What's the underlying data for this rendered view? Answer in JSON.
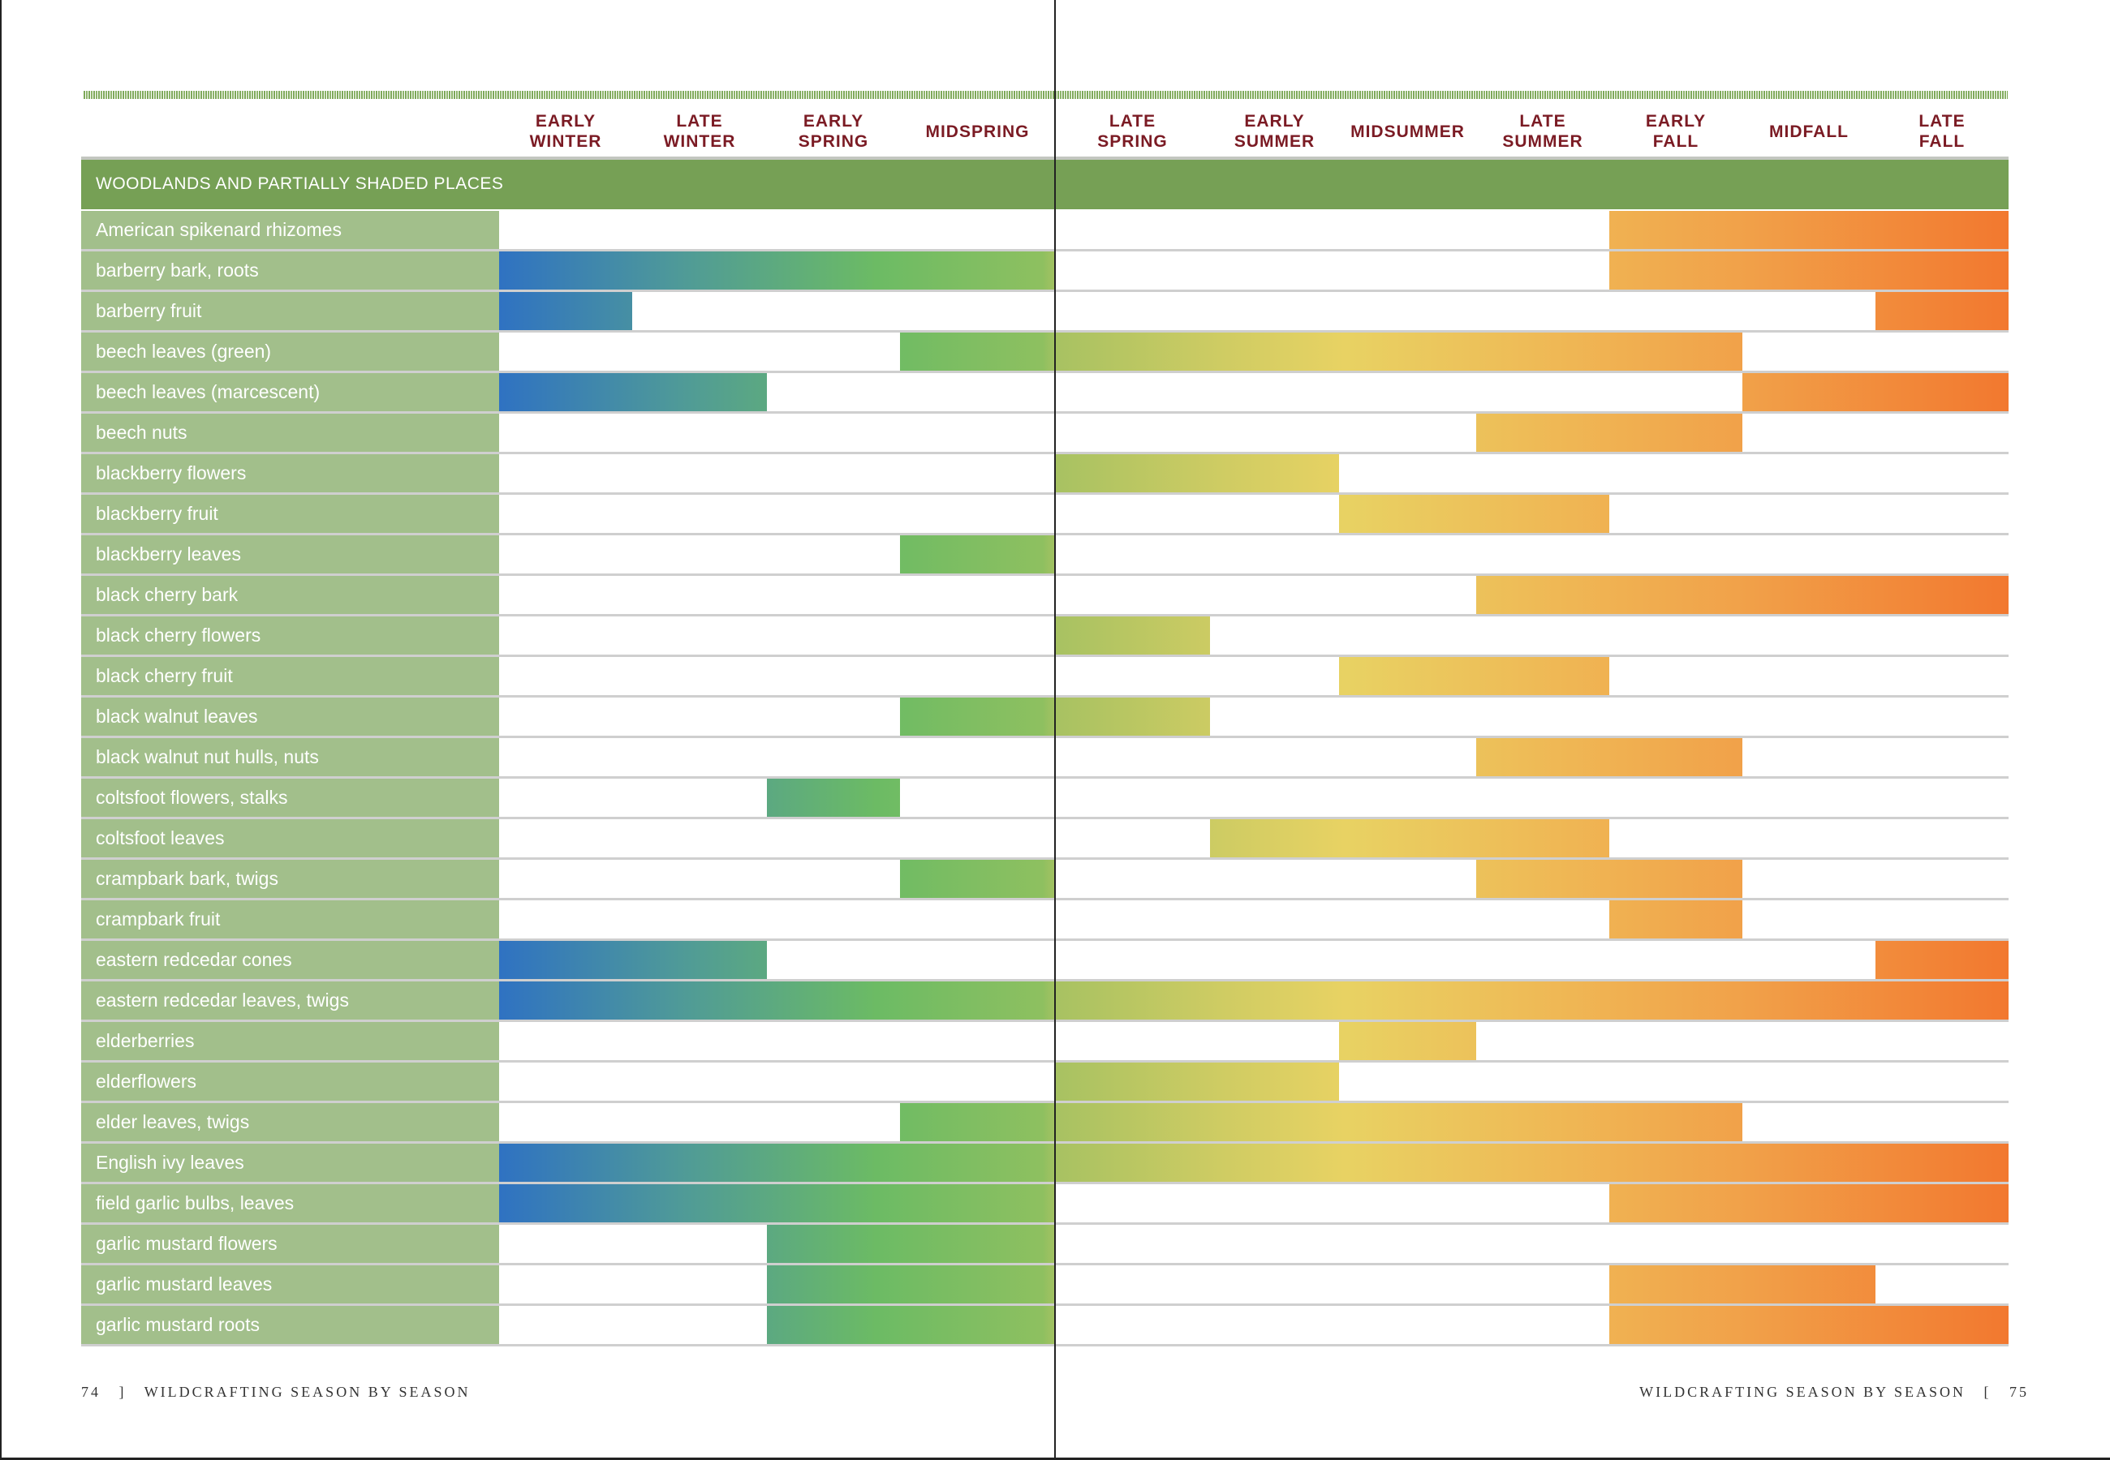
{
  "header": {
    "seasons": [
      "EARLY WINTER",
      "LATE WINTER",
      "EARLY SPRING",
      "MIDSPRING",
      "LATE SPRING",
      "EARLY SUMMER",
      "MIDSUMMER",
      "LATE SUMMER",
      "EARLY FALL",
      "MIDFALL",
      "LATE FALL"
    ]
  },
  "section": {
    "title": "WOODLANDS AND PARTIALLY SHADED PLACES"
  },
  "colors": {
    "section": "#76a055",
    "label_bg": "#a2bf8b",
    "header_text": "#7b1b24",
    "gradient_start": "#2f72c2",
    "gradient_mid_green": "#6cbb64",
    "gradient_yellow": "#e8d263",
    "gradient_end": "#f2782f"
  },
  "chart_data": {
    "type": "bar",
    "orientation": "horizontal-range",
    "categories": [
      "EARLY WINTER",
      "LATE WINTER",
      "EARLY SPRING",
      "MIDSPRING",
      "LATE SPRING",
      "EARLY SUMMER",
      "MIDSUMMER",
      "LATE SUMMER",
      "EARLY FALL",
      "MIDFALL",
      "LATE FALL"
    ],
    "rows": [
      {
        "label": "American spikenard rhizomes",
        "ranges": [
          [
            "EARLY FALL",
            "LATE FALL"
          ]
        ]
      },
      {
        "label": "barberry bark, roots",
        "ranges": [
          [
            "EARLY WINTER",
            "MIDSPRING"
          ],
          [
            "EARLY FALL",
            "LATE FALL"
          ]
        ]
      },
      {
        "label": "barberry fruit",
        "ranges": [
          [
            "EARLY WINTER",
            "EARLY WINTER"
          ],
          [
            "LATE FALL",
            "LATE FALL"
          ]
        ]
      },
      {
        "label": "beech leaves (green)",
        "ranges": [
          [
            "MIDSPRING",
            "EARLY FALL"
          ]
        ]
      },
      {
        "label": "beech leaves (marcescent)",
        "ranges": [
          [
            "EARLY WINTER",
            "LATE WINTER"
          ],
          [
            "MIDFALL",
            "LATE FALL"
          ]
        ]
      },
      {
        "label": "beech nuts",
        "ranges": [
          [
            "LATE SUMMER",
            "EARLY FALL"
          ]
        ]
      },
      {
        "label": "blackberry flowers",
        "ranges": [
          [
            "LATE SPRING",
            "EARLY SUMMER"
          ]
        ]
      },
      {
        "label": "blackberry fruit",
        "ranges": [
          [
            "MIDSUMMER",
            "LATE SUMMER"
          ]
        ]
      },
      {
        "label": "blackberry leaves",
        "ranges": [
          [
            "MIDSPRING",
            "MIDSPRING"
          ]
        ]
      },
      {
        "label": "black cherry bark",
        "ranges": [
          [
            "LATE SUMMER",
            "LATE FALL"
          ]
        ]
      },
      {
        "label": "black cherry flowers",
        "ranges": [
          [
            "LATE SPRING",
            "LATE SPRING"
          ]
        ]
      },
      {
        "label": "black cherry fruit",
        "ranges": [
          [
            "MIDSUMMER",
            "LATE SUMMER"
          ]
        ]
      },
      {
        "label": "black walnut leaves",
        "ranges": [
          [
            "MIDSPRING",
            "LATE SPRING"
          ]
        ]
      },
      {
        "label": "black walnut nut hulls, nuts",
        "ranges": [
          [
            "LATE SUMMER",
            "EARLY FALL"
          ]
        ]
      },
      {
        "label": "coltsfoot flowers, stalks",
        "ranges": [
          [
            "EARLY SPRING",
            "EARLY SPRING"
          ]
        ]
      },
      {
        "label": "coltsfoot leaves",
        "ranges": [
          [
            "EARLY SUMMER",
            "LATE SUMMER"
          ]
        ]
      },
      {
        "label": "crampbark bark, twigs",
        "ranges": [
          [
            "MIDSPRING",
            "MIDSPRING"
          ],
          [
            "LATE SUMMER",
            "EARLY FALL"
          ]
        ]
      },
      {
        "label": "crampbark fruit",
        "ranges": [
          [
            "EARLY FALL",
            "EARLY FALL"
          ]
        ]
      },
      {
        "label": "eastern redcedar cones",
        "ranges": [
          [
            "EARLY WINTER",
            "LATE WINTER"
          ],
          [
            "LATE FALL",
            "LATE FALL"
          ]
        ]
      },
      {
        "label": "eastern redcedar leaves, twigs",
        "ranges": [
          [
            "EARLY WINTER",
            "LATE FALL"
          ]
        ]
      },
      {
        "label": "elderberries",
        "ranges": [
          [
            "MIDSUMMER",
            "MIDSUMMER"
          ]
        ]
      },
      {
        "label": "elderflowers",
        "ranges": [
          [
            "LATE SPRING",
            "EARLY SUMMER"
          ]
        ]
      },
      {
        "label": "elder leaves, twigs",
        "ranges": [
          [
            "MIDSPRING",
            "EARLY FALL"
          ]
        ]
      },
      {
        "label": "English ivy leaves",
        "ranges": [
          [
            "EARLY WINTER",
            "LATE FALL"
          ]
        ]
      },
      {
        "label": "field garlic bulbs, leaves",
        "ranges": [
          [
            "EARLY WINTER",
            "MIDSPRING"
          ],
          [
            "EARLY FALL",
            "LATE FALL"
          ]
        ]
      },
      {
        "label": "garlic mustard flowers",
        "ranges": [
          [
            "EARLY SPRING",
            "MIDSPRING"
          ]
        ]
      },
      {
        "label": "garlic mustard leaves",
        "ranges": [
          [
            "EARLY SPRING",
            "MIDSPRING"
          ],
          [
            "EARLY FALL",
            "MIDFALL"
          ]
        ]
      },
      {
        "label": "garlic mustard roots",
        "ranges": [
          [
            "EARLY SPRING",
            "MIDSPRING"
          ],
          [
            "EARLY FALL",
            "LATE FALL"
          ]
        ]
      }
    ]
  },
  "footer": {
    "left_page": "74",
    "left_sep": "]",
    "running_title": "WILDCRAFTING SEASON BY SEASON",
    "right_sep": "[",
    "right_page": "75"
  }
}
